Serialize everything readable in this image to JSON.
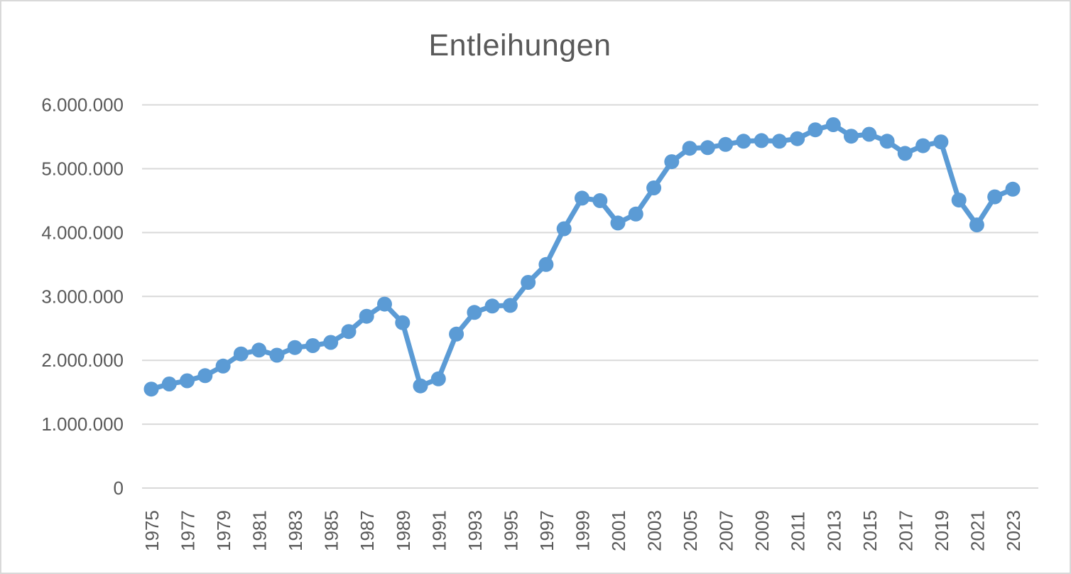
{
  "window": {
    "background": "#ffffff",
    "border_color": "#d9d9d9"
  },
  "chart_data": {
    "type": "line",
    "title": "Entleihungen",
    "xlabel": "",
    "ylabel": "",
    "legend": "none",
    "grid": "horizontal",
    "marker": "circle",
    "series_color": "#5b9bd5",
    "gridline_color": "#d9d9d9",
    "text_color": "#595959",
    "ylim": [
      0,
      6000000
    ],
    "x": [
      1975,
      1976,
      1977,
      1978,
      1979,
      1980,
      1981,
      1982,
      1983,
      1984,
      1985,
      1986,
      1987,
      1988,
      1989,
      1990,
      1991,
      1992,
      1993,
      1994,
      1995,
      1996,
      1997,
      1998,
      1999,
      2000,
      2001,
      2002,
      2003,
      2004,
      2005,
      2006,
      2007,
      2008,
      2009,
      2010,
      2011,
      2012,
      2013,
      2014,
      2015,
      2016,
      2017,
      2018,
      2019,
      2020,
      2021,
      2022,
      2023
    ],
    "values": [
      1550000,
      1630000,
      1680000,
      1760000,
      1910000,
      2100000,
      2160000,
      2080000,
      2200000,
      2230000,
      2280000,
      2450000,
      2690000,
      2880000,
      2590000,
      1600000,
      1710000,
      2410000,
      2750000,
      2850000,
      2860000,
      3220000,
      3500000,
      4060000,
      4540000,
      4500000,
      4150000,
      4290000,
      4700000,
      5110000,
      5320000,
      5330000,
      5380000,
      5430000,
      5440000,
      5430000,
      5470000,
      5610000,
      5690000,
      5510000,
      5540000,
      5430000,
      5240000,
      5360000,
      5420000,
      4510000,
      4120000,
      4560000,
      4680000
    ],
    "x_tick_labels": [
      "1975",
      "1977",
      "1979",
      "1981",
      "1983",
      "1985",
      "1987",
      "1989",
      "1991",
      "1993",
      "1995",
      "1997",
      "1999",
      "2001",
      "2003",
      "2005",
      "2007",
      "2009",
      "2011",
      "2013",
      "2015",
      "2017",
      "2019",
      "2021",
      "2023"
    ],
    "y_ticks": [
      0,
      1000000,
      2000000,
      3000000,
      4000000,
      5000000,
      6000000
    ],
    "y_tick_labels": [
      "0",
      "1.000.000",
      "2.000.000",
      "3.000.000",
      "4.000.000",
      "5.000.000",
      "6.000.000"
    ]
  }
}
